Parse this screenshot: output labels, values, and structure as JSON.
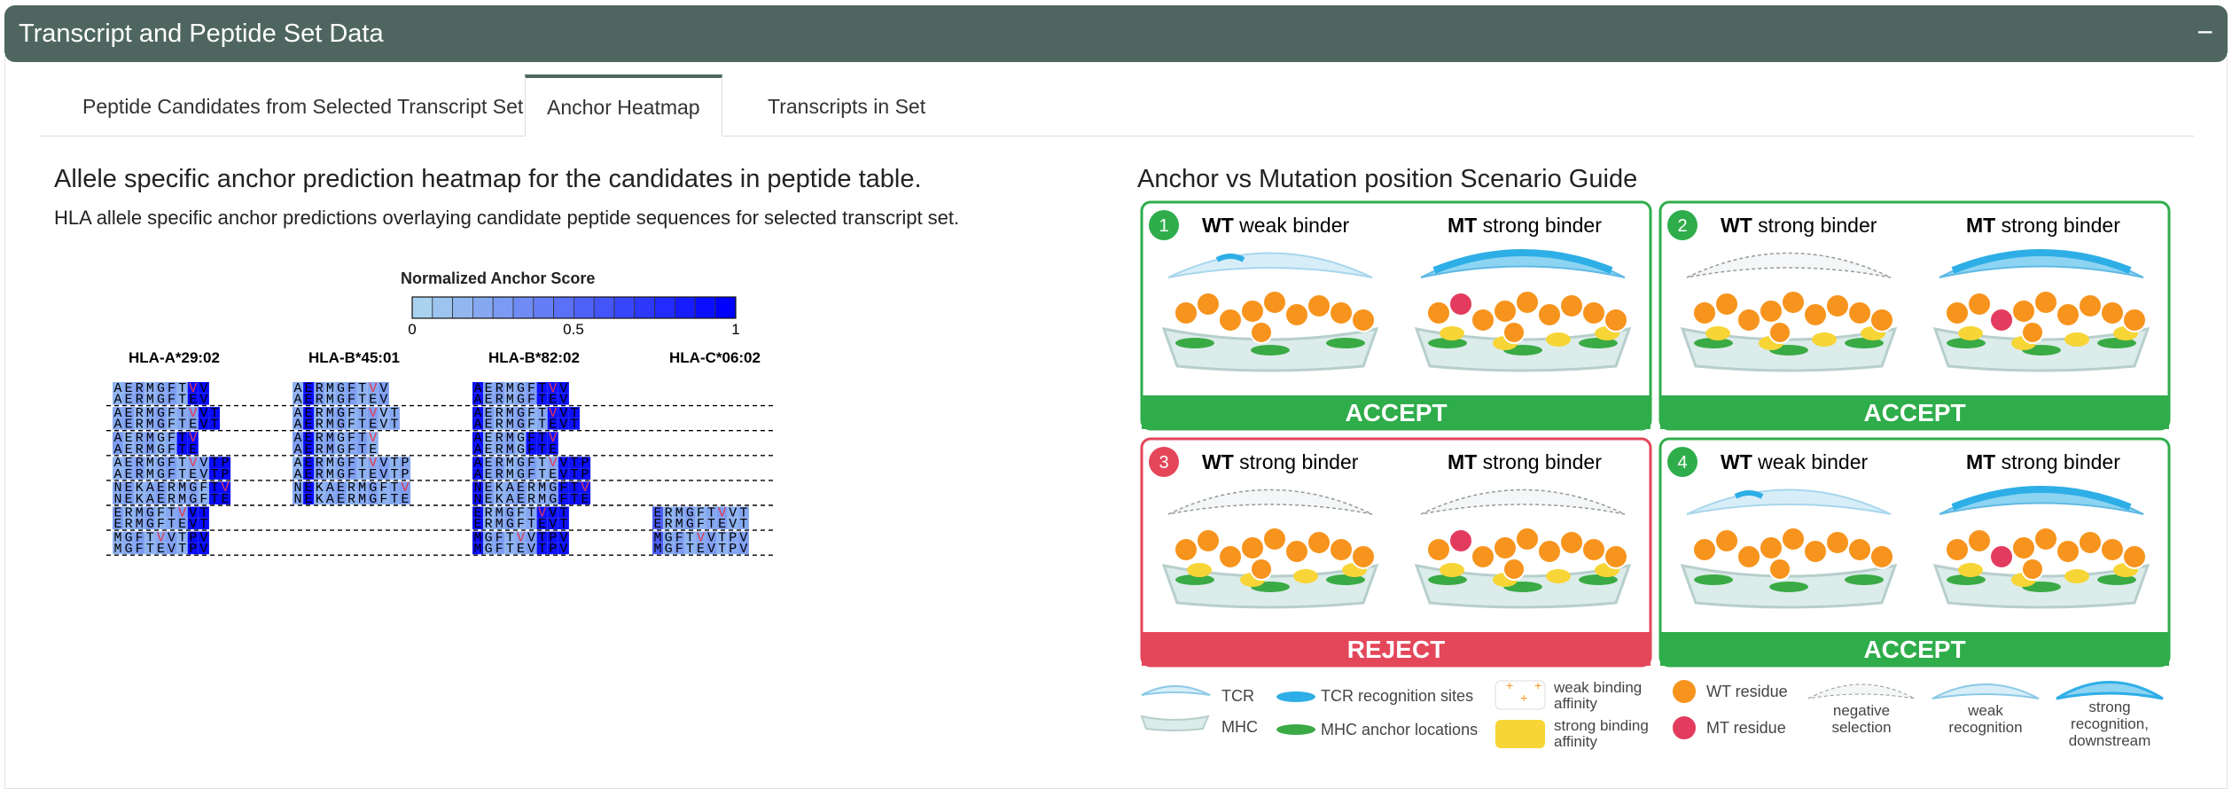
{
  "panel": {
    "title": "Transcript and Peptide Set Data",
    "collapse_label": "−"
  },
  "tabs": [
    {
      "label": "Peptide Candidates from Selected Transcript Set",
      "active": false
    },
    {
      "label": "Anchor Heatmap",
      "active": true
    },
    {
      "label": "Transcripts in Set",
      "active": false
    }
  ],
  "heatmap": {
    "title": "Allele specific anchor prediction heatmap for the candidates in peptide table.",
    "subtitle": "HLA allele specific anchor predictions overlaying candidate peptide sequences for selected transcript set.",
    "legend": {
      "title": "Normalized Anchor Score",
      "ticks": [
        "0",
        "0.5",
        "1"
      ],
      "colors": {
        "low": "#a8d2ee",
        "high": "#0000ff"
      }
    },
    "alleles": [
      "HLA-A*29:02",
      "HLA-B*45:01",
      "HLA-B*82:02",
      "HLA-C*06:02"
    ],
    "peptide_groups": [
      [
        "AERMGFTVV",
        "AERMGFTEV"
      ],
      [
        "AERMGFTVVT",
        "AERMGFTEVT"
      ],
      [
        "AERMGFTV",
        "AERMGFTE"
      ],
      [
        "AERMGFTVVTP",
        "AERMGFTEVTP"
      ],
      [
        "NEKAERMGFTV",
        "NEKAERMGFTE"
      ],
      [
        "ERMGFTVVT",
        "ERMGFTEVT"
      ],
      [
        "MGFTVVTPV",
        "MGFTEVTPV"
      ]
    ],
    "mutant_residue": "V",
    "mutant_color": "#e8364a"
  },
  "guide": {
    "title": "Anchor vs Mutation position Scenario Guide",
    "scenarios": [
      {
        "number": "1",
        "wt_label": "WT",
        "wt_text": "weak binder",
        "mt_label": "MT",
        "mt_text": "strong binder",
        "verdict": "ACCEPT"
      },
      {
        "number": "2",
        "wt_label": "WT",
        "wt_text": "strong binder",
        "mt_label": "MT",
        "mt_text": "strong binder",
        "verdict": "ACCEPT"
      },
      {
        "number": "3",
        "wt_label": "WT",
        "wt_text": "strong binder",
        "mt_label": "MT",
        "mt_text": "strong binder",
        "verdict": "REJECT"
      },
      {
        "number": "4",
        "wt_label": "WT",
        "wt_text": "weak binder",
        "mt_label": "MT",
        "mt_text": "strong binder",
        "verdict": "ACCEPT"
      }
    ],
    "colors": {
      "accept": "#2fad4b",
      "reject": "#e4465a",
      "wt_residue": "#f7941d",
      "mt_residue": "#e33b5f",
      "tcr": "#2eaee6"
    },
    "legend": {
      "tcr": "TCR",
      "mhc": "MHC",
      "tcr_sites": "TCR recognition sites",
      "mhc_anchor": "MHC anchor locations",
      "weak_affinity": "weak binding affinity",
      "strong_affinity": "strong binding affinity",
      "wt_residue": "WT residue",
      "mt_residue": "MT residue",
      "negative_selection": "negative selection",
      "weak_recognition": "weak recognition",
      "strong_recognition": "strong recognition, downstream activation"
    }
  }
}
